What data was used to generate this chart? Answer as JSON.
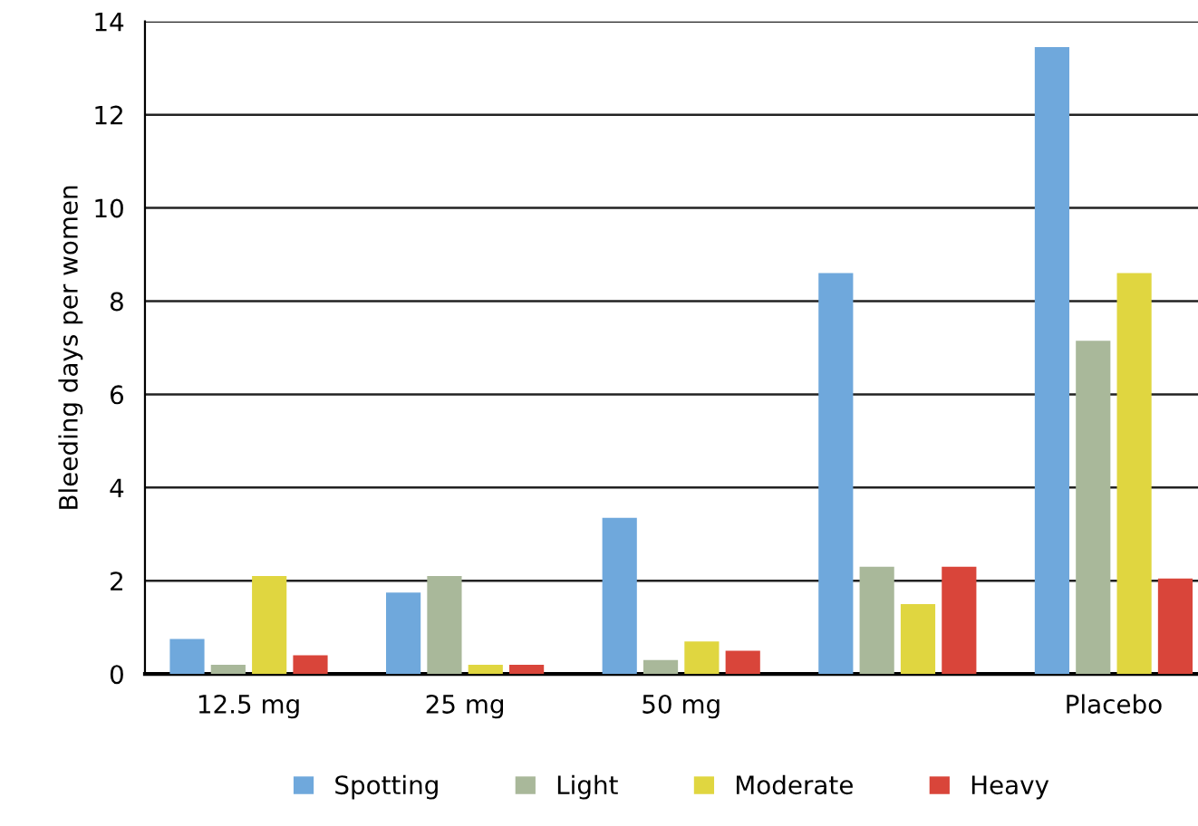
{
  "chart_data": {
    "type": "bar",
    "ylabel": "Bleeding days per women",
    "categories": [
      "12.5 mg",
      "25 mg",
      "50 mg",
      null,
      "Placebo"
    ],
    "series": [
      {
        "name": "Spotting",
        "color": "#6fa8dc",
        "values": [
          0.75,
          1.75,
          3.35,
          8.6,
          13.45
        ]
      },
      {
        "name": "Light",
        "color": "#a9b89a",
        "values": [
          0.2,
          2.1,
          0.3,
          2.3,
          7.15
        ]
      },
      {
        "name": "Moderate",
        "color": "#e0d640",
        "values": [
          2.1,
          0.2,
          0.7,
          1.5,
          8.6
        ]
      },
      {
        "name": "Heavy",
        "color": "#d9453a",
        "values": [
          0.4,
          0.2,
          0.5,
          2.3,
          2.05
        ]
      }
    ],
    "ylim": [
      0,
      14
    ],
    "yticks": [
      0,
      2,
      4,
      6,
      8,
      10,
      12,
      14
    ],
    "grid": "y",
    "legend": "bottom"
  }
}
